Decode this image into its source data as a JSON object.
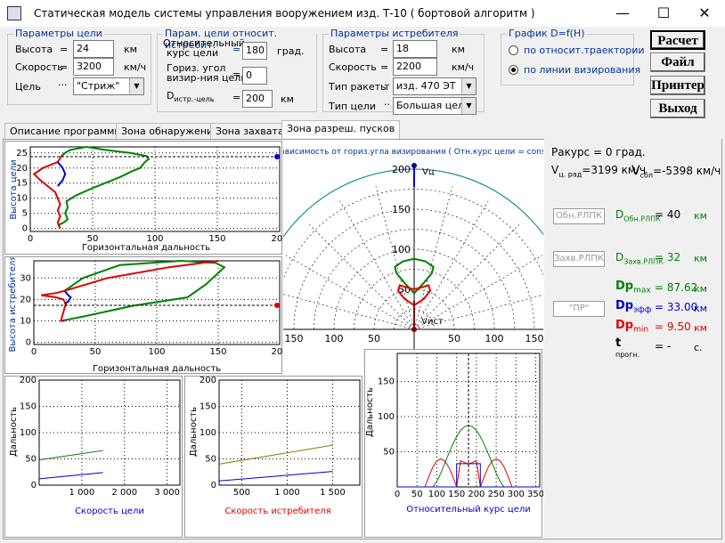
{
  "window": {
    "title": "Статическая модель системы управления вооружением  изд. Т-10  ( бортовой алгоритм )",
    "min": "—",
    "max": "☐",
    "close": "✕"
  },
  "target": {
    "group": "Параметры цели",
    "altitude_label": "Высота",
    "altitude_value": "24",
    "altitude_unit": "км",
    "speed_label": "Скорость",
    "speed_value": "3200",
    "speed_unit": "км/ч",
    "target_label": "Цель",
    "target_value": "\"Стриж\""
  },
  "relative": {
    "group": "Парам. цели относит. истребит.",
    "course_label1": "Относительный",
    "course_label2": "курс цели",
    "course_value": "180",
    "course_unit": "град.",
    "angle_label1": "Гориз. угол",
    "angle_label2": "визир-ния цели",
    "angle_value": "0",
    "dist_label": "D",
    "dist_sub": "истр.-цель",
    "dist_value": "200",
    "dist_unit": "км"
  },
  "fighter": {
    "group": "Параметры истребителя",
    "altitude_label": "Высота",
    "altitude_value": "18",
    "altitude_unit": "км",
    "speed_label": "Скорость",
    "speed_value": "2200",
    "speed_unit": "км/ч",
    "missile_label": "Тип ракеты",
    "missile_value": "изд. 470 ЭТ",
    "tgt_type_label": "Тип цели",
    "tgt_type_value": "Большая цель"
  },
  "graph": {
    "group": "График  D=f(H)",
    "opt1": "по относит.траектории",
    "opt2": "по линии визирования"
  },
  "buttons": {
    "calc": "Расчет",
    "file": "Файл",
    "printer": "Принтер",
    "exit": "Выход"
  },
  "tabs": [
    "Описание программы",
    "Зона обнаружения",
    "Зона захвата",
    "Зона разреш. пусков"
  ],
  "plots": {
    "h_target_ylabel": "Высота цели",
    "h_fighter_ylabel": "Высота истребителя",
    "xlabel_horiz": "Горизонтальная дальность",
    "polar_title": "Зависимость от гориз.угла визирования ( Отн.курс цели = const)",
    "polar_vc": "Vц",
    "polar_vist": "Vист",
    "range_ylabel": "Дальность",
    "speed_target_xlabel": "Скорость цели",
    "speed_fighter_xlabel": "Скорость истребителя",
    "course_xlabel": "Относительный курс цели"
  },
  "results": {
    "aspect": "Ракурс = 0 град.",
    "vrad_label": "V",
    "vrad_sub": "ц. рад",
    "vrad_sup": "ц",
    "vrad_value": "=3199 км/ч",
    "vsbl_label": "V",
    "vsbl_sub": "сбл",
    "vsbl_value": "=-5398 км/ч",
    "det_box": "Обн.РЛПК",
    "det_label": "D",
    "det_sub": "Обн.РЛПК",
    "det_value": "=   40",
    "det_unit": "км",
    "cap_box": "Захв.РЛПК",
    "cap_label": "D",
    "cap_sub": "Захв.РЛПК",
    "cap_value": "=   32",
    "cap_unit": "км",
    "dmax_label": "Dp",
    "dmax_sub": "max",
    "dmax_value": "=  87.62",
    "dmax_unit": "км",
    "deff_label": "Dp",
    "deff_sub": "эфф",
    "deff_value": "=  33.00",
    "deff_unit": "км",
    "pr_box": "\"ПР\"",
    "dmin_label": "Dp",
    "dmin_sub": "min",
    "dmin_value": "=   9.50",
    "dmin_unit": "км",
    "t_label": "t",
    "t_sub": "прогн.",
    "t_value": "=    -",
    "t_unit": "с."
  },
  "colors": {
    "green": "#008000",
    "red": "#e00000",
    "blue": "#0000cc",
    "title_blue": "#003399"
  }
}
